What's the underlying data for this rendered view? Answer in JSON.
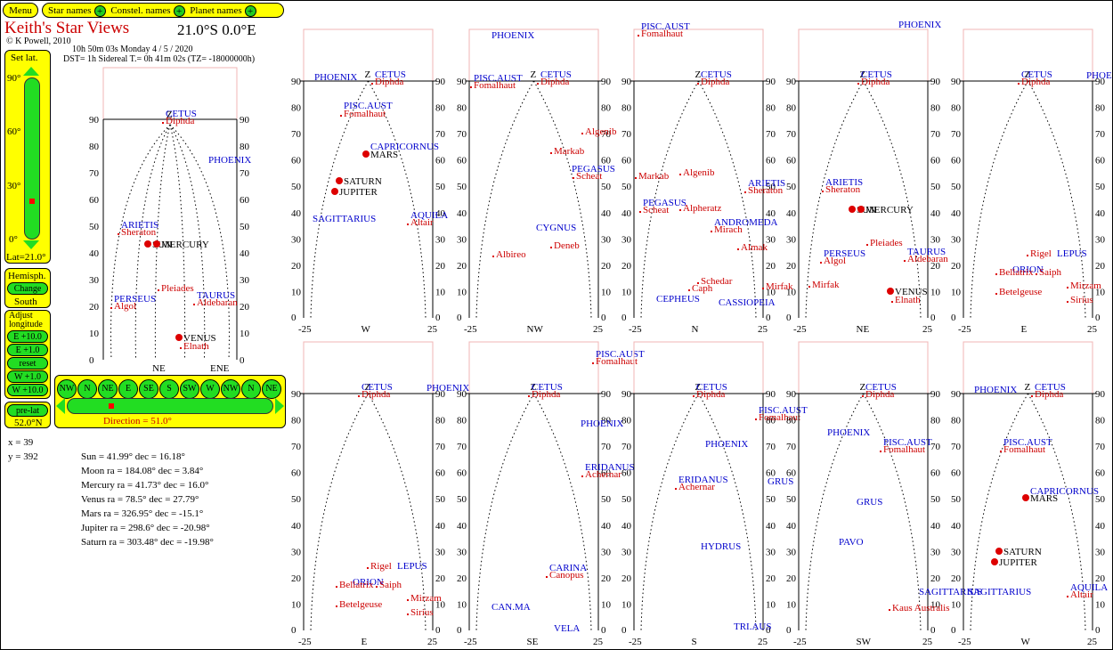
{
  "colors": {
    "yellow": "#ffff00",
    "green": "#22dd22",
    "star": "#cc0000",
    "constellation": "#0000cc",
    "planet": "#000000"
  },
  "topbar": {
    "menu": "Menu",
    "star_names": "Star names",
    "constel_names": "Constel. names",
    "planet_names": "Planet names"
  },
  "header": {
    "title": "Keith's Star Views",
    "coords": "21.0°S 0.0°E",
    "copyright": "© K Powell, 2010",
    "time": "10h 50m 03s   Monday   4 / 5 / 2020",
    "sidereal": "DST= 1h   Sidereal T.= 0h 41m 02s  (TZ= -18000000h)"
  },
  "left": {
    "set_lat": "Set lat.",
    "lat_ticks": [
      "90°",
      "60°",
      "30°",
      "0°"
    ],
    "lat_value": "Lat=21.0°",
    "hemisph": "Hemisph.",
    "change": "Change",
    "south": "South",
    "adjust": "Adjust longitude",
    "long_btns": [
      "E +10.0",
      "E +1.0",
      "reset",
      "W +1.0",
      "W +10.0"
    ],
    "prelat": "pre-lat",
    "prelat_value": "52.0°N"
  },
  "compass": {
    "labels": [
      "NW",
      "N",
      "NE",
      "E",
      "SE",
      "S",
      "SW",
      "W",
      "NW",
      "N",
      "NE"
    ],
    "direction": "Direction = 51.0°"
  },
  "readout": {
    "x": "x = 39",
    "y": "y = 392",
    "rows": [
      "Sun = 41.99° dec = 16.18°",
      "Moon ra = 184.08° dec = 3.84°",
      "Mercury ra = 41.73° dec = 16.0°",
      "Venus ra = 78.5° dec = 27.79°",
      "Mars ra = 326.95° dec = -15.1°",
      "Jupiter ra = 298.6° dec = -20.98°",
      "Saturn ra = 303.48° dec = -19.98°"
    ]
  },
  "axis": {
    "z": "Z",
    "xmin": "-25",
    "xmax": "25",
    "alt": [
      "90",
      "80",
      "70",
      "60",
      "50",
      "40",
      "30",
      "20",
      "10",
      "0"
    ]
  },
  "views": [
    {
      "dir": "W",
      "items": [
        [
          "PHOENIX",
          "c",
          12,
          1
        ],
        [
          "Diphda",
          "s",
          80,
          -4
        ],
        [
          "CETUS",
          "c",
          80,
          4
        ],
        [
          "Fomalhaut",
          "s",
          45,
          -40
        ],
        [
          "PISC.AUST",
          "c",
          45,
          -31
        ],
        [
          "MARS",
          "p",
          75,
          -86
        ],
        [
          "CAPRICORNUS",
          "c",
          75,
          -77
        ],
        [
          "SATURN",
          "p",
          45,
          -116
        ],
        [
          "JUPITER",
          "p",
          40,
          -128
        ],
        [
          "SAGITTARIUS",
          "c",
          10,
          -158
        ],
        [
          "Altair",
          "s",
          120,
          -162
        ],
        [
          "AQUILA",
          "c",
          120,
          -154
        ]
      ]
    },
    {
      "dir": "NW",
      "items": [
        [
          "PHOENIX",
          "c",
          25,
          48
        ],
        [
          "Fomalhaut",
          "s",
          5,
          -8
        ],
        [
          "PISC.AUST",
          "c",
          5,
          0
        ],
        [
          "Diphda",
          "s",
          80,
          -4
        ],
        [
          "CETUS",
          "c",
          80,
          4
        ],
        [
          "Algenib",
          "s",
          130,
          -60
        ],
        [
          "Markab",
          "s",
          95,
          -82
        ],
        [
          "Scheat",
          "s",
          120,
          -110
        ],
        [
          "PEGASUS",
          "c",
          115,
          -102
        ],
        [
          "CYGNUS",
          "c",
          75,
          -168
        ],
        [
          "Deneb",
          "s",
          95,
          -188
        ],
        [
          "Albireo",
          "s",
          30,
          -198
        ]
      ]
    },
    {
      "dir": "N",
      "items": [
        [
          "Fomalhaut",
          "s",
          8,
          50
        ],
        [
          "PISC.AUST",
          "c",
          8,
          58
        ],
        [
          "Diphda",
          "s",
          75,
          -4
        ],
        [
          "CETUS",
          "c",
          75,
          4
        ],
        [
          "Markab",
          "s",
          5,
          -110
        ],
        [
          "Algenib",
          "s",
          55,
          -106
        ],
        [
          "Scheat",
          "s",
          10,
          -148
        ],
        [
          "PEGASUS",
          "c",
          10,
          -140
        ],
        [
          "Alpheratz",
          "s",
          55,
          -146
        ],
        [
          "Sheraton",
          "s",
          128,
          -126
        ],
        [
          "ARIETIS",
          "c",
          128,
          -118
        ],
        [
          "Mirach",
          "s",
          90,
          -170
        ],
        [
          "ANDROMEDA",
          "c",
          90,
          -162
        ],
        [
          "Almak",
          "s",
          120,
          -190
        ],
        [
          "Schedar",
          "s",
          75,
          -228
        ],
        [
          "Caph",
          "s",
          65,
          -236
        ],
        [
          "CEPHEUS",
          "c",
          25,
          -248
        ],
        [
          "CASSIOPEIA",
          "c",
          95,
          -252
        ],
        [
          "Mirfak",
          "s",
          148,
          -234
        ]
      ]
    },
    {
      "dir": "NE",
      "items": [
        [
          "PHOENIX",
          "c",
          112,
          60
        ],
        [
          "Diphda",
          "s",
          70,
          -4
        ],
        [
          "CETUS",
          "c",
          70,
          4
        ],
        [
          "Sheraton",
          "s",
          30,
          -125
        ],
        [
          "ARIETIS",
          "c",
          30,
          -117
        ],
        [
          "SUN",
          "p",
          65,
          -148
        ],
        [
          "MERCURY",
          "p",
          75,
          -148
        ],
        [
          "Pleiades",
          "s",
          80,
          -185
        ],
        [
          "Aldebaran",
          "s",
          122,
          -203
        ],
        [
          "TAURUS",
          "c",
          122,
          -195
        ],
        [
          "Algol",
          "s",
          28,
          -205
        ],
        [
          "PERSEUS",
          "c",
          28,
          -197
        ],
        [
          "Mirfak",
          "s",
          15,
          -232
        ],
        [
          "VENUS",
          "p",
          108,
          -240
        ],
        [
          "Elnath",
          "s",
          108,
          -249
        ]
      ]
    },
    {
      "dir": "E",
      "items": [
        [
          "PHOENIX",
          "c",
          138,
          3
        ],
        [
          "Diphda",
          "s",
          65,
          -4
        ],
        [
          "CETUS",
          "c",
          65,
          4
        ],
        [
          "Rigel",
          "s",
          75,
          -197
        ],
        [
          "LEPUS",
          "c",
          105,
          -197
        ],
        [
          "ORION",
          "c",
          55,
          -215
        ],
        [
          "Bellatrix",
          "s",
          40,
          -218
        ],
        [
          "Saiph",
          "s",
          85,
          -218
        ],
        [
          "Mirzam",
          "s",
          120,
          -233
        ],
        [
          "Betelgeuse",
          "s",
          40,
          -240
        ],
        [
          "Sirius",
          "s",
          120,
          -249
        ]
      ]
    },
    {
      "dir": "E",
      "items": [
        [
          "PHOENIX",
          "c",
          138,
          3
        ],
        [
          "Diphda",
          "s",
          65,
          -4
        ],
        [
          "CETUS",
          "c",
          65,
          4
        ],
        [
          "Rigel",
          "s",
          75,
          -197
        ],
        [
          "LEPUS",
          "c",
          105,
          -197
        ],
        [
          "ORION",
          "c",
          55,
          -215
        ],
        [
          "Bellatrix",
          "s",
          40,
          -218
        ],
        [
          "Saiph",
          "s",
          85,
          -218
        ],
        [
          "Mirzam",
          "s",
          120,
          -233
        ],
        [
          "Betelgeuse",
          "s",
          40,
          -240
        ],
        [
          "Sirius",
          "s",
          120,
          -249
        ]
      ]
    },
    {
      "dir": "SE",
      "items": [
        [
          "Fomalhaut",
          "s",
          142,
          33
        ],
        [
          "PISC.AUST",
          "c",
          142,
          41
        ],
        [
          "Diphda",
          "s",
          70,
          -4
        ],
        [
          "CETUS",
          "c",
          70,
          4
        ],
        [
          "PHOENIX",
          "c",
          125,
          -37
        ],
        [
          "Achernar",
          "s",
          130,
          -94
        ],
        [
          "ERIDANUS",
          "c",
          130,
          -86
        ],
        [
          "Canopus",
          "s",
          90,
          -207
        ],
        [
          "CARINA",
          "c",
          90,
          -199
        ],
        [
          "CAN.MA",
          "c",
          25,
          -243
        ],
        [
          "VELA",
          "c",
          95,
          -267
        ]
      ]
    },
    {
      "dir": "S",
      "items": [
        [
          "Diphda",
          "s",
          70,
          -4
        ],
        [
          "CETUS",
          "c",
          70,
          4
        ],
        [
          "Fomalhaut",
          "s",
          140,
          -30
        ],
        [
          "PISC.AUST",
          "c",
          140,
          -22
        ],
        [
          "PHOENIX",
          "c",
          80,
          -60
        ],
        [
          "Achernar",
          "s",
          50,
          -108
        ],
        [
          "ERIDANUS",
          "c",
          50,
          -100
        ],
        [
          "GRUS",
          "c",
          150,
          -102
        ],
        [
          "HYDRUS",
          "c",
          75,
          -175
        ],
        [
          "TRI.AUS",
          "c",
          112,
          -265
        ]
      ]
    },
    {
      "dir": "SW",
      "items": [
        [
          "Diphda",
          "s",
          75,
          -4
        ],
        [
          "CETUS",
          "c",
          75,
          4
        ],
        [
          "PHOENIX",
          "c",
          32,
          -47
        ],
        [
          "Fomalhaut",
          "s",
          95,
          -66
        ],
        [
          "PISC.AUST",
          "c",
          95,
          -58
        ],
        [
          "GRUS",
          "c",
          65,
          -125
        ],
        [
          "PAVO",
          "c",
          45,
          -170
        ],
        [
          "SAGITTARIUS",
          "c",
          135,
          -226
        ],
        [
          "Kaus Australis",
          "s",
          105,
          -244
        ]
      ]
    },
    {
      "dir": "W",
      "items": [
        [
          "PHOENIX",
          "c",
          12,
          1
        ],
        [
          "Diphda",
          "s",
          80,
          -4
        ],
        [
          "CETUS",
          "c",
          80,
          4
        ],
        [
          "Fomalhaut",
          "s",
          45,
          -66
        ],
        [
          "PISC.AUST",
          "c",
          45,
          -58
        ],
        [
          "MARS",
          "p",
          75,
          -121
        ],
        [
          "CAPRICORNUS",
          "c",
          75,
          -113
        ],
        [
          "SATURN",
          "p",
          45,
          -181
        ],
        [
          "JUPITER",
          "p",
          40,
          -193
        ],
        [
          "SAGITTARIUS",
          "c",
          5,
          -226
        ],
        [
          "Altair",
          "s",
          120,
          -229
        ],
        [
          "AQUILA",
          "c",
          120,
          -221
        ]
      ]
    }
  ],
  "small": {
    "dirs": [
      "NE",
      "ENE"
    ],
    "items": [
      [
        "PHOENIX",
        "c",
        118,
        -49
      ],
      [
        "Diphda",
        "s",
        70,
        -5
      ],
      [
        "CETUS",
        "c",
        70,
        3
      ],
      [
        "Sheraton",
        "s",
        20,
        -130
      ],
      [
        "ARIETIS",
        "c",
        20,
        -122
      ],
      [
        "SUN",
        "p",
        55,
        -144
      ],
      [
        "MERCURY",
        "p",
        65,
        -144
      ],
      [
        "Pleiades",
        "s",
        65,
        -193
      ],
      [
        "Aldebaran",
        "s",
        105,
        -209
      ],
      [
        "TAURUS",
        "c",
        105,
        -201
      ],
      [
        "Algol",
        "s",
        12,
        -213
      ],
      [
        "PERSEUS",
        "c",
        12,
        -205
      ],
      [
        "VENUS",
        "p",
        90,
        -249
      ],
      [
        "Elnath",
        "s",
        90,
        -258
      ]
    ]
  }
}
